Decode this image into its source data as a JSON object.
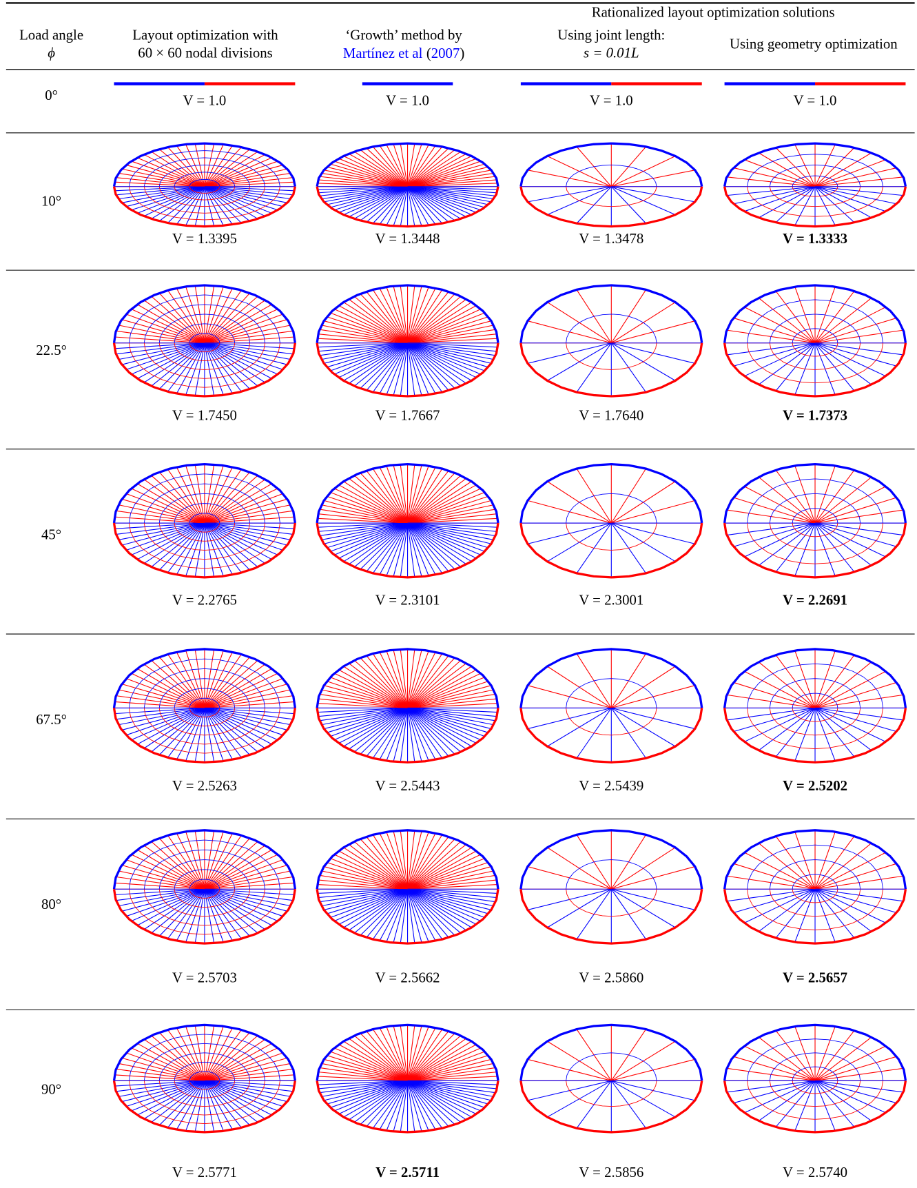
{
  "header": {
    "group": "Rationalized layout optimization solutions",
    "load_angle": "Load angle",
    "phi": "ϕ",
    "layout_opt": [
      "Layout optimization with",
      "60 × 60 nodal divisions"
    ],
    "growth": "‘Growth’ method by",
    "citation": {
      "authors": "Martínez et al",
      "open": "(",
      "year": "2007",
      "close": ")"
    },
    "joint": [
      "Using joint length:",
      "s = 0.01L"
    ],
    "geom": "Using geometry optimization"
  },
  "rows": [
    {
      "angle": "0°",
      "volumes": [
        "V = 1.0",
        "V = 1.0",
        "V = 1.0",
        "V = 1.0"
      ]
    },
    {
      "angle": "10°",
      "volumes": [
        "V = 1.3395",
        "V = 1.3448",
        "V = 1.3478",
        "V = 1.3333"
      ],
      "best": 3
    },
    {
      "angle": "22.5°",
      "volumes": [
        "V = 1.7450",
        "V = 1.7667",
        "V = 1.7640",
        "V = 1.7373"
      ],
      "best": 3
    },
    {
      "angle": "45°",
      "volumes": [
        "V = 2.2765",
        "V = 2.3101",
        "V = 2.3001",
        "V = 2.2691"
      ],
      "best": 3
    },
    {
      "angle": "67.5°",
      "volumes": [
        "V = 2.5263",
        "V = 2.5443",
        "V = 2.5439",
        "V = 2.5202"
      ],
      "best": 3
    },
    {
      "angle": "80°",
      "volumes": [
        "V = 2.5703",
        "V = 2.5662",
        "V = 2.5860",
        "V = 2.5657"
      ],
      "best": 3
    },
    {
      "angle": "90°",
      "volumes": [
        "V = 2.5771",
        "V = 2.5711",
        "V = 2.5856",
        "V = 2.5740"
      ],
      "best": 1
    }
  ]
}
